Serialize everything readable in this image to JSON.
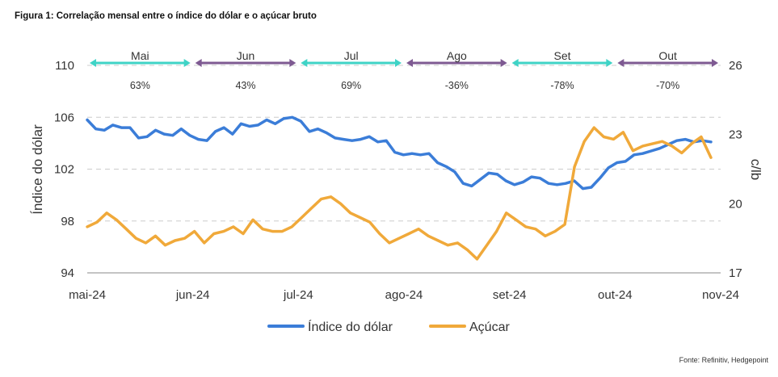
{
  "figure_title": "Figura 1: Correlação mensal entre o índice do dólar e o açúcar bruto",
  "source": "Fonte: Refinitiv, Hedgepoint",
  "colors": {
    "dollar": "#3b7dd8",
    "sugar": "#f0a93a",
    "teal": "#3fd3c6",
    "purple": "#7e5a92",
    "grid": "#cccccc"
  },
  "chart_data": {
    "type": "line",
    "ylabel_left": "Índice do dólar",
    "ylabel_right": "c/lb",
    "ylim_left": [
      94,
      110
    ],
    "ylim_right": [
      17,
      26
    ],
    "yticks_left": [
      "94",
      "98",
      "102",
      "106",
      "110"
    ],
    "yticks_right": [
      "17",
      "20",
      "23",
      "26"
    ],
    "xticks": [
      "mai-24",
      "jun-24",
      "jul-24",
      "ago-24",
      "set-24",
      "out-24",
      "nov-24"
    ],
    "grid": "horizontal dashed",
    "legend_position": "bottom-center",
    "months": [
      {
        "label": "Mai",
        "corr": "63%",
        "color": "teal"
      },
      {
        "label": "Jun",
        "corr": "43%",
        "color": "purple"
      },
      {
        "label": "Jul",
        "corr": "69%",
        "color": "teal"
      },
      {
        "label": "Ago",
        "corr": "-36%",
        "color": "purple"
      },
      {
        "label": "Set",
        "corr": "-78%",
        "color": "teal"
      },
      {
        "label": "Out",
        "corr": "-70%",
        "color": "purple"
      }
    ],
    "series": [
      {
        "name": "Índice do dólar",
        "axis": "left",
        "color": "dollar",
        "values": [
          105.8,
          105.1,
          105.0,
          105.4,
          105.2,
          105.2,
          104.4,
          104.5,
          105.0,
          104.7,
          104.6,
          105.1,
          104.6,
          104.3,
          104.2,
          104.9,
          105.2,
          104.7,
          105.5,
          105.3,
          105.4,
          105.8,
          105.5,
          105.9,
          106.0,
          105.7,
          104.9,
          105.1,
          104.8,
          104.4,
          104.3,
          104.2,
          104.3,
          104.5,
          104.1,
          104.2,
          103.3,
          103.1,
          103.2,
          103.1,
          103.2,
          102.5,
          102.2,
          101.8,
          100.9,
          100.7,
          101.2,
          101.7,
          101.6,
          101.1,
          100.8,
          101.0,
          101.4,
          101.3,
          100.9,
          100.8,
          100.9,
          101.1,
          100.5,
          100.6,
          101.3,
          102.1,
          102.5,
          102.6,
          103.1,
          103.2,
          103.4,
          103.6,
          103.9,
          104.2,
          104.3,
          104.1,
          104.2,
          104.1
        ]
      },
      {
        "name": "Açúcar",
        "axis": "right",
        "color": "sugar",
        "values": [
          19.0,
          19.2,
          19.6,
          19.3,
          18.9,
          18.5,
          18.3,
          18.6,
          18.2,
          18.4,
          18.5,
          18.8,
          18.3,
          18.7,
          18.8,
          19.0,
          18.7,
          19.3,
          18.9,
          18.8,
          18.8,
          19.0,
          19.4,
          19.8,
          20.2,
          20.3,
          20.0,
          19.6,
          19.4,
          19.2,
          18.7,
          18.3,
          18.5,
          18.7,
          18.9,
          18.6,
          18.4,
          18.2,
          18.3,
          18.0,
          17.6,
          18.2,
          18.8,
          19.6,
          19.3,
          19.0,
          18.9,
          18.6,
          18.8,
          19.1,
          21.6,
          22.7,
          23.3,
          22.9,
          22.8,
          23.1,
          22.3,
          22.5,
          22.6,
          22.7,
          22.5,
          22.2,
          22.6,
          22.9,
          22.0
        ]
      }
    ]
  },
  "legend": [
    {
      "label": "Índice do dólar",
      "color": "dollar"
    },
    {
      "label": "Açúcar",
      "color": "sugar"
    }
  ]
}
